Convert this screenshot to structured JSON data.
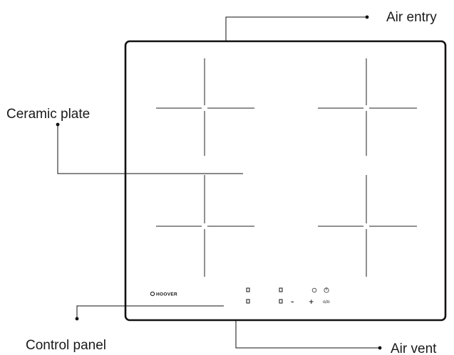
{
  "callouts": {
    "air_entry": "Air entry",
    "ceramic_plate": "Ceramic plate",
    "control_panel": "Control panel",
    "air_vent": "Air vent"
  },
  "brand": "HOOVER",
  "controls": {
    "minus": "–",
    "plus": "+",
    "lock_symbol": "ɑ/ɒ"
  },
  "colors": {
    "line": "#111111",
    "text": "#1a1a1a"
  }
}
